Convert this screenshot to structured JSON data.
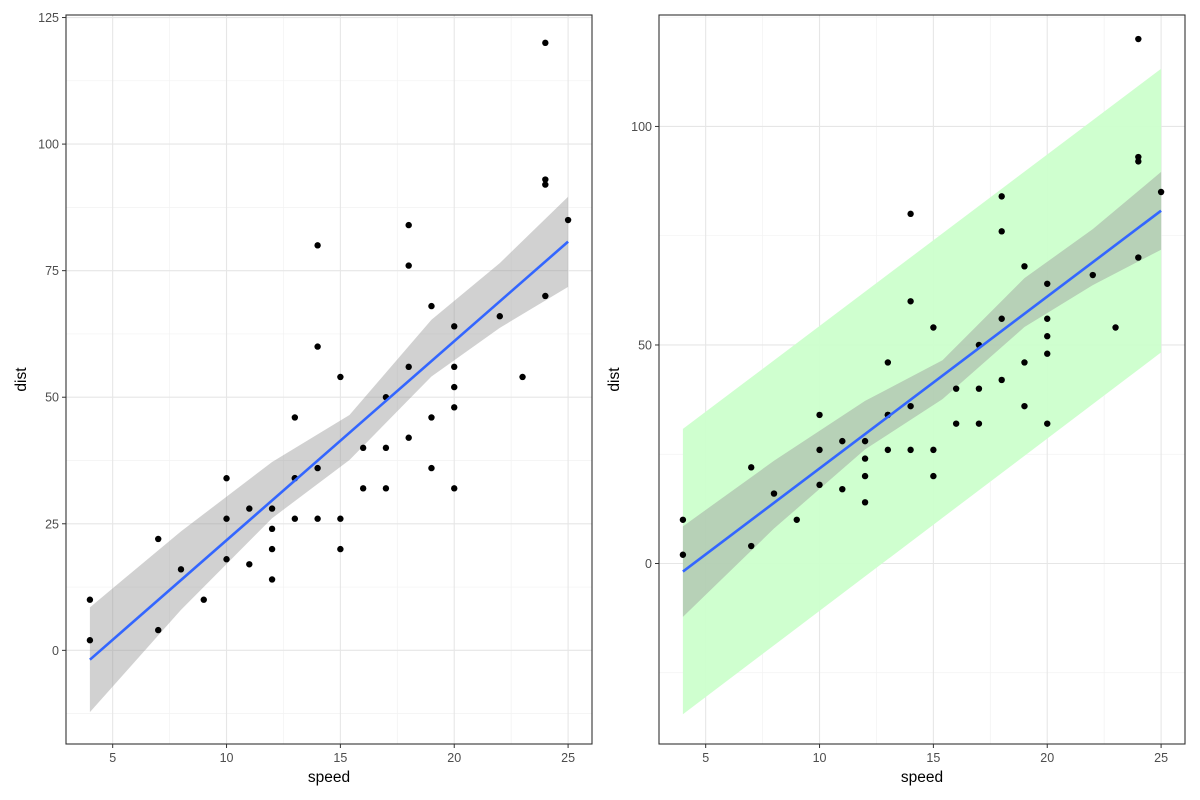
{
  "chart_data": [
    {
      "type": "scatter",
      "title": "",
      "xlabel": "speed",
      "ylabel": "dist",
      "xlim": [
        2.95,
        26.05
      ],
      "ylim": [
        -18.5,
        125.5
      ],
      "x_ticks": [
        5,
        10,
        15,
        20,
        25
      ],
      "y_ticks": [
        0,
        25,
        50,
        75,
        100,
        125
      ],
      "grid": true,
      "points": {
        "x": [
          4,
          4,
          7,
          7,
          8,
          9,
          10,
          10,
          10,
          11,
          11,
          12,
          12,
          12,
          12,
          13,
          13,
          13,
          13,
          14,
          14,
          14,
          14,
          15,
          15,
          15,
          16,
          16,
          17,
          17,
          17,
          18,
          18,
          18,
          18,
          19,
          19,
          19,
          20,
          20,
          20,
          20,
          20,
          22,
          23,
          24,
          24,
          24,
          24,
          25
        ],
        "y": [
          2,
          10,
          4,
          22,
          16,
          10,
          18,
          26,
          34,
          17,
          28,
          14,
          20,
          24,
          28,
          26,
          34,
          34,
          46,
          26,
          36,
          60,
          80,
          20,
          26,
          54,
          32,
          40,
          32,
          40,
          50,
          42,
          56,
          76,
          84,
          36,
          46,
          68,
          32,
          48,
          52,
          56,
          64,
          66,
          54,
          70,
          92,
          93,
          120,
          85
        ]
      },
      "fit_line": {
        "x": [
          4,
          25
        ],
        "y": [
          -1.849,
          80.732
        ],
        "color": "#3366FF"
      },
      "confidence_band": {
        "x": [
          4,
          8,
          12,
          15.4,
          19,
          22,
          25
        ],
        "lower": [
          -12.2,
          8.0,
          26.1,
          37.6,
          54.1,
          63.7,
          71.8
        ],
        "upper": [
          8.5,
          23.5,
          37.2,
          46.5,
          65.3,
          76.5,
          89.6
        ],
        "color": "#999999"
      },
      "prediction_band": null
    },
    {
      "type": "scatter",
      "title": "",
      "xlabel": "speed",
      "ylabel": "dist",
      "xlim": [
        2.95,
        26.05
      ],
      "ylim": [
        -41.3,
        125.5
      ],
      "x_ticks": [
        5,
        10,
        15,
        20,
        25
      ],
      "y_ticks": [
        0,
        50,
        100
      ],
      "grid": true,
      "points": {
        "x": [
          4,
          4,
          7,
          7,
          8,
          9,
          10,
          10,
          10,
          11,
          11,
          12,
          12,
          12,
          12,
          13,
          13,
          13,
          13,
          14,
          14,
          14,
          14,
          15,
          15,
          15,
          16,
          16,
          17,
          17,
          17,
          18,
          18,
          18,
          18,
          19,
          19,
          19,
          20,
          20,
          20,
          20,
          20,
          22,
          23,
          24,
          24,
          24,
          24,
          25
        ],
        "y": [
          2,
          10,
          4,
          22,
          16,
          10,
          18,
          26,
          34,
          17,
          28,
          14,
          20,
          24,
          28,
          26,
          34,
          34,
          46,
          26,
          36,
          60,
          80,
          20,
          26,
          54,
          32,
          40,
          32,
          40,
          50,
          42,
          56,
          76,
          84,
          36,
          46,
          68,
          32,
          48,
          52,
          56,
          64,
          66,
          54,
          70,
          92,
          93,
          120,
          85
        ]
      },
      "fit_line": {
        "x": [
          4,
          25
        ],
        "y": [
          -1.849,
          80.732
        ],
        "color": "#3366FF"
      },
      "confidence_band": {
        "x": [
          4,
          8,
          12,
          15.4,
          19,
          22,
          25
        ],
        "lower": [
          -12.2,
          8.0,
          26.1,
          37.6,
          54.1,
          63.7,
          71.8
        ],
        "upper": [
          8.5,
          23.5,
          37.2,
          46.5,
          65.3,
          76.5,
          89.6
        ],
        "color": "#999999"
      },
      "prediction_band": {
        "x": [
          4,
          25
        ],
        "lower": [
          -34.5,
          48.3
        ],
        "upper": [
          30.8,
          113.2
        ],
        "color": "#CCFFCC"
      }
    }
  ]
}
